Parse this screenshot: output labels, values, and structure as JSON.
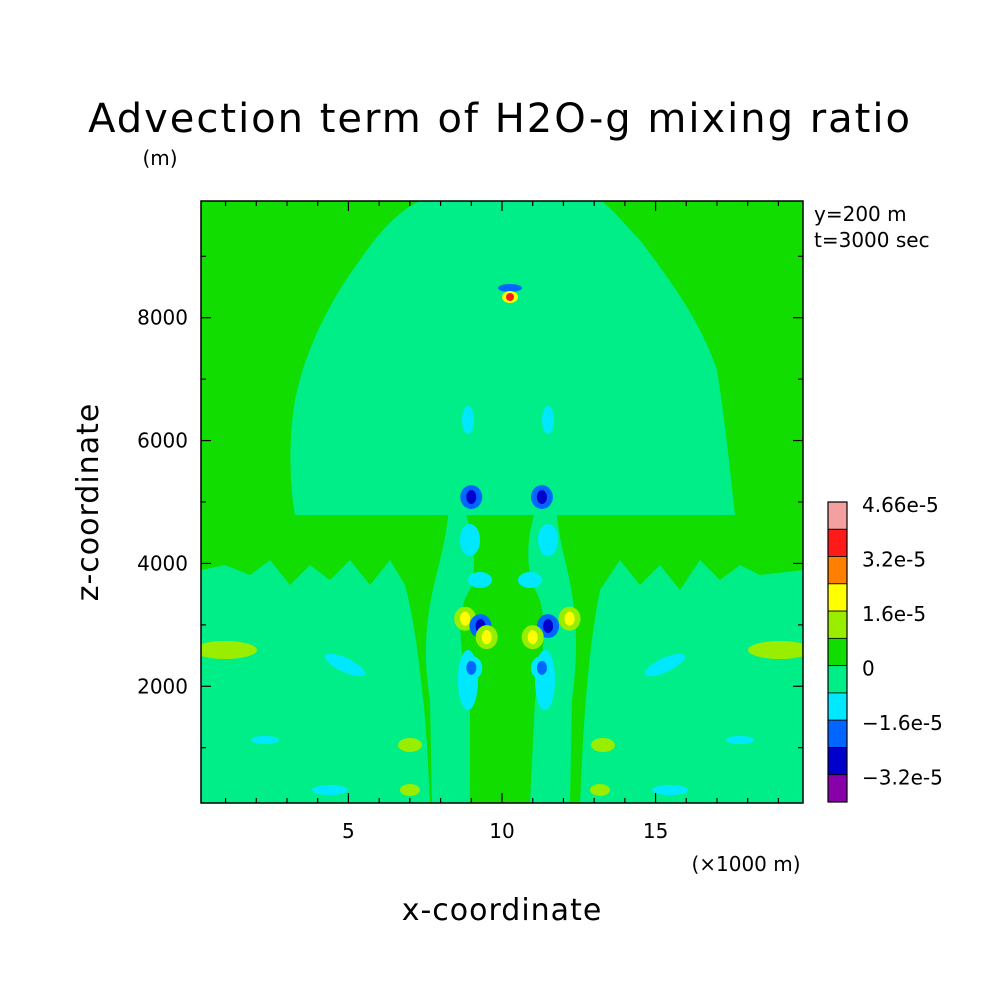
{
  "chart_data": {
    "type": "heatmap",
    "title": "Advection term of H2O-g mixing ratio",
    "xlabel": "x-coordinate",
    "ylabel": "z-coordinate",
    "x_unit": "(×1000 m)",
    "y_unit": "(m)",
    "annotations": [
      "y=200 m",
      "t=3000 sec"
    ],
    "xlim": [
      0.2,
      19.8
    ],
    "ylim": [
      100,
      9900
    ],
    "x_ticks": [
      5,
      10,
      15
    ],
    "y_ticks": [
      2000,
      4000,
      6000,
      8000
    ],
    "x_tick_labels": [
      "5",
      "10",
      "15"
    ],
    "y_tick_labels": [
      "2000",
      "4000",
      "6000",
      "8000"
    ],
    "colorbar": {
      "labels": [
        "4.66e-5",
        "3.2e-5",
        "1.6e-5",
        "0",
        "−1.6e-5",
        "−3.2e-5"
      ],
      "levels_top_to_bottom": [
        4.66e-05,
        4e-05,
        3.2e-05,
        2.4e-05,
        1.6e-05,
        8e-06,
        0,
        -8e-06,
        -1.6e-05,
        -2.4e-05,
        -3.2e-05
      ],
      "colors_top_to_bottom": [
        "#f4a0a0",
        "#ff1a1a",
        "#ff7f00",
        "#ffff00",
        "#99ee00",
        "#11dd00",
        "#00ee88",
        "#00e8ff",
        "#0066ff",
        "#0000cc",
        "#8800aa"
      ]
    },
    "colors": {
      "background_near_zero_negative": "#00ee88",
      "near_zero_positive": "#11dd00",
      "weak_positive": "#99ee00",
      "weak_negative": "#00e8ff",
      "moderate_negative": "#0066ff",
      "strong_negative": "#0000cc",
      "moderate_positive": "#ffff00",
      "strong_positive": "#ff7f00",
      "max_positive": "#ff1a1a"
    },
    "features": [
      {
        "x": 10.2,
        "z": 8350,
        "level": "max_positive"
      },
      {
        "x": 10.2,
        "z": 8550,
        "level": "moderate_negative"
      },
      {
        "x": 9.0,
        "z": 5080,
        "level": "strong_negative"
      },
      {
        "x": 11.3,
        "z": 5080,
        "level": "strong_negative"
      },
      {
        "x": 8.8,
        "z": 3100,
        "level": "moderate_positive"
      },
      {
        "x": 12.2,
        "z": 3100,
        "level": "moderate_positive"
      },
      {
        "x": 9.3,
        "z": 2980,
        "level": "strong_negative"
      },
      {
        "x": 11.5,
        "z": 2980,
        "level": "strong_negative"
      },
      {
        "x": 9.5,
        "z": 2800,
        "level": "moderate_positive"
      },
      {
        "x": 11.0,
        "z": 2800,
        "level": "moderate_positive"
      },
      {
        "x": 9.0,
        "z": 2300,
        "level": "moderate_negative"
      },
      {
        "x": 11.3,
        "z": 2300,
        "level": "moderate_negative"
      },
      {
        "x": 0.9,
        "z": 2550,
        "level": "weak_positive"
      },
      {
        "x": 19.1,
        "z": 2550,
        "level": "weak_positive"
      }
    ]
  }
}
